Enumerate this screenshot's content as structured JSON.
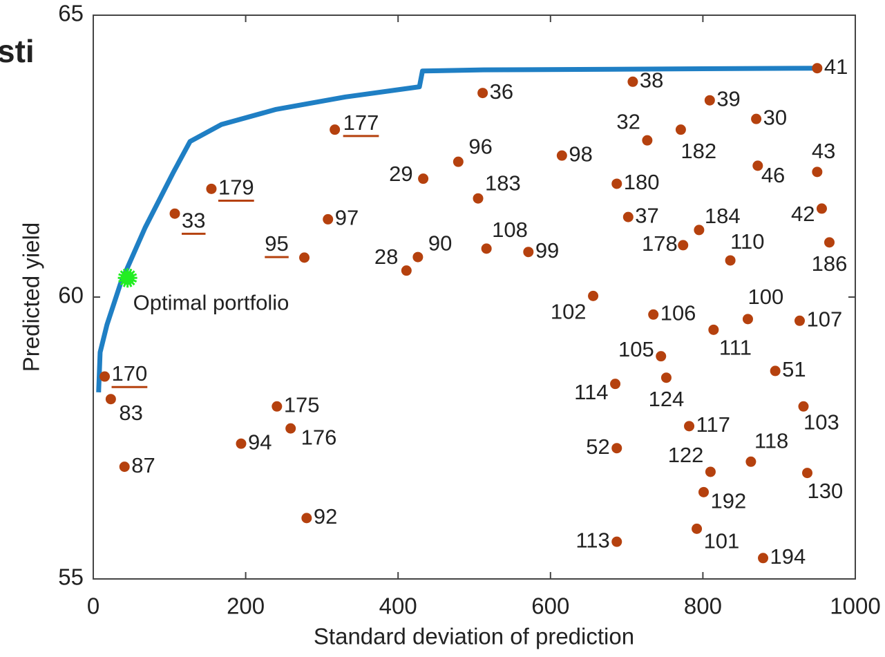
{
  "slide_text": "sti",
  "chart_data": {
    "type": "scatter",
    "xlabel": "Standard deviation of prediction",
    "ylabel": "Predicted yield",
    "xlim": [
      0,
      1000
    ],
    "xticks": [
      0,
      200,
      400,
      600,
      800,
      1000
    ],
    "ylim": [
      55,
      65
    ],
    "yticks": [
      55,
      60,
      65
    ],
    "series": [
      {
        "type": "scatter",
        "color": "#b5410e",
        "x": [
          950,
          708,
          511,
          809,
          870,
          317,
          727,
          771,
          479,
          615,
          872,
          950,
          433,
          687,
          155,
          505,
          956,
          107,
          308,
          702,
          795,
          966,
          774,
          516,
          571,
          426,
          277,
          836,
          411,
          656,
          735,
          859,
          927,
          814,
          745,
          752,
          685,
          895,
          15,
          23,
          241,
          932,
          259,
          782,
          194,
          687,
          863,
          41,
          810,
          937,
          801,
          280,
          792,
          687,
          879
        ],
        "values": [
          64.06,
          63.82,
          63.62,
          63.49,
          63.16,
          62.97,
          62.78,
          62.97,
          62.4,
          62.51,
          62.33,
          62.22,
          62.1,
          62.01,
          61.92,
          61.75,
          61.57,
          61.48,
          61.38,
          61.42,
          61.19,
          60.97,
          60.92,
          60.86,
          60.8,
          60.71,
          60.7,
          60.65,
          60.47,
          60.02,
          59.69,
          59.61,
          59.58,
          59.42,
          58.95,
          58.57,
          58.46,
          58.69,
          58.59,
          58.19,
          58.06,
          58.06,
          57.67,
          57.71,
          57.4,
          57.32,
          57.08,
          56.99,
          56.9,
          56.88,
          56.54,
          56.08,
          55.89,
          55.66,
          55.37
        ],
        "labels": [
          "41",
          "38",
          "36",
          "39",
          "30",
          "177",
          "32",
          "182",
          "96",
          "98",
          "46",
          "43",
          "29",
          "180",
          "179",
          "183",
          "42",
          "33",
          "97",
          "37",
          "184",
          "186",
          "178",
          "108",
          "99",
          "90",
          "95",
          "110",
          "28",
          "102",
          "106",
          "100",
          "107",
          "111",
          "105",
          "124",
          "114",
          "51",
          "170",
          "83",
          "175",
          "103",
          "176",
          "117",
          "94",
          "52",
          "118",
          "87",
          "122",
          "130",
          "192",
          "92",
          "101",
          "113",
          "194"
        ]
      },
      {
        "type": "line",
        "color": "#1f7fc4",
        "x": [
          7,
          9,
          18,
          36,
          68,
          105,
          127,
          168,
          240,
          331,
          428,
          432,
          512,
          950
        ],
        "values": [
          58.31,
          59.02,
          59.51,
          60.25,
          61.23,
          62.21,
          62.76,
          63.06,
          63.33,
          63.55,
          63.73,
          64.01,
          64.03,
          64.06
        ]
      },
      {
        "type": "scatter",
        "color": "#22ee22",
        "x": [
          45
        ],
        "values": [
          60.34
        ],
        "labels": [
          "Optimal portfolio"
        ]
      }
    ]
  }
}
